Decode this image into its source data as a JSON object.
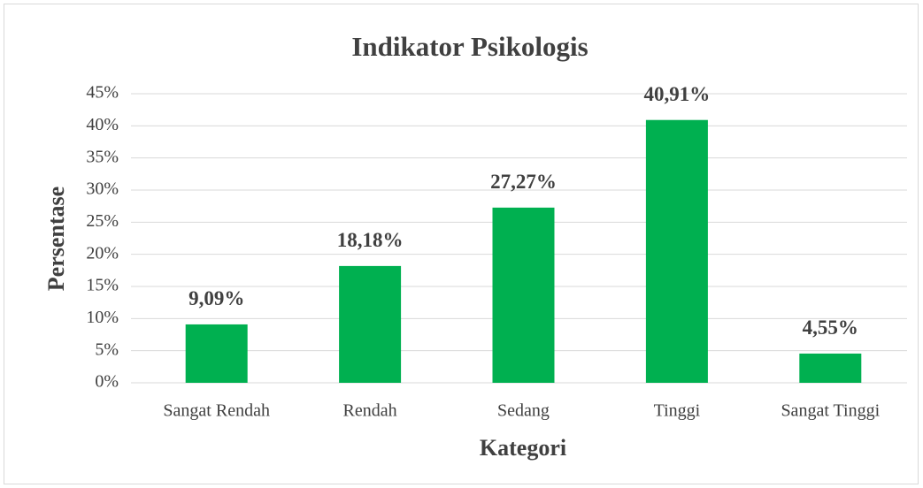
{
  "chart_data": {
    "type": "bar",
    "title": "Indikator Psikologis",
    "x_label": "Kategori",
    "y_label": "Persentase",
    "categories": [
      "Sangat Rendah",
      "Rendah",
      "Sedang",
      "Tinggi",
      "Sangat Tinggi"
    ],
    "values": [
      9.09,
      18.18,
      27.27,
      40.91,
      4.55
    ],
    "value_labels": [
      "9,09%",
      "18,18%",
      "27,27%",
      "40,91%",
      "4,55%"
    ],
    "color": "#00b050",
    "ylim": [
      0,
      45
    ],
    "yticks": [
      {
        "value": 0,
        "label": "0%"
      },
      {
        "value": 5,
        "label": "5%"
      },
      {
        "value": 10,
        "label": "10%"
      },
      {
        "value": 15,
        "label": "15%"
      },
      {
        "value": 20,
        "label": "20%"
      },
      {
        "value": 25,
        "label": "25%"
      },
      {
        "value": 30,
        "label": "30%"
      },
      {
        "value": 35,
        "label": "35%"
      },
      {
        "value": 40,
        "label": "40%"
      },
      {
        "value": 45,
        "label": "45%"
      }
    ],
    "grid": true
  }
}
